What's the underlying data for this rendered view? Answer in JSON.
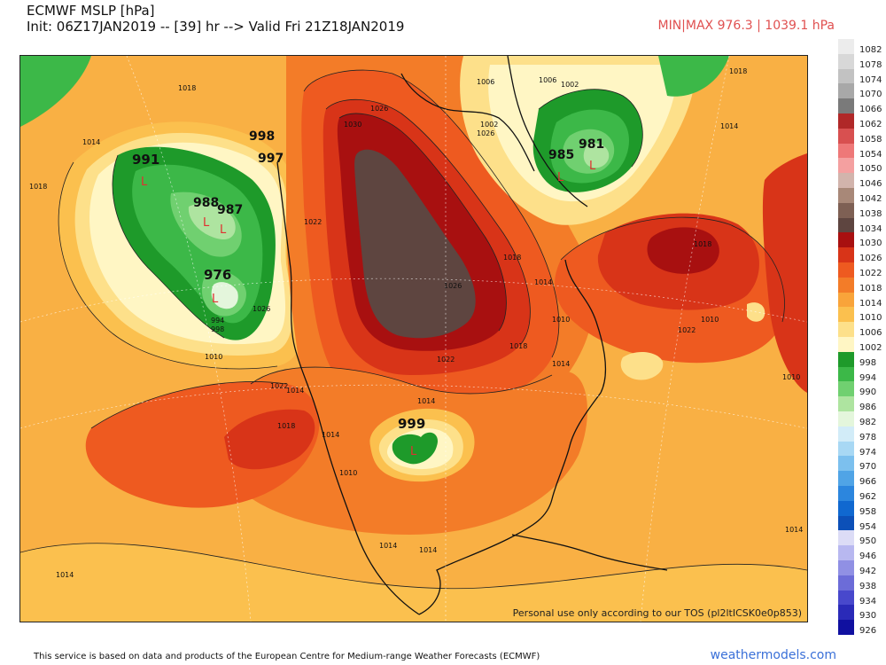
{
  "header": {
    "title_line1": "ECMWF MSLP [hPa]",
    "title_line2": "Init: 06Z17JAN2019 -- [39] hr --> Valid Fri 21Z18JAN2019",
    "minmax": "MIN|MAX 976.3 | 1039.1 hPa"
  },
  "map": {
    "tos_notice": "Personal use only according to our TOS (pl2ltICSK0e0p853)",
    "pressure_centers": [
      {
        "value": "991",
        "type": "low",
        "marker": "L"
      },
      {
        "value": "988",
        "type": "low",
        "marker": "L"
      },
      {
        "value": "987",
        "type": "low",
        "marker": "L"
      },
      {
        "value": "976",
        "type": "low",
        "marker": "L"
      },
      {
        "value": "998",
        "type": "low"
      },
      {
        "value": "997",
        "type": "low"
      },
      {
        "value": "985",
        "type": "low",
        "marker": "L"
      },
      {
        "value": "981",
        "type": "low",
        "marker": "L"
      },
      {
        "value": "999",
        "type": "low",
        "marker": "L"
      }
    ],
    "isobar_labels": [
      "1018",
      "1014",
      "1018",
      "1010",
      "1026",
      "1030",
      "1022",
      "1018",
      "1014",
      "1010",
      "1006",
      "1002",
      "1026",
      "1022",
      "1018",
      "1014",
      "1022",
      "1018",
      "1014",
      "1010",
      "1026",
      "1014",
      "1014",
      "1014",
      "1018",
      "1010",
      "1022",
      "1014",
      "1006",
      "1002",
      "1010",
      "1014",
      "1018",
      "994",
      "998",
      "1026",
      "1014",
      "1014"
    ],
    "colors": {
      "ocean_base": "#f9b044",
      "high_1034": "#5e4540",
      "high_1030": "#a81010",
      "band_1026": "#d83418",
      "band_1022": "#ee5a20",
      "band_1018": "#f37c28",
      "band_1014": "#f9a43a",
      "band_1010": "#fbc04e",
      "band_1006": "#fde08a",
      "band_1002": "#fff6c4",
      "low_998": "#1e9a2a",
      "low_994": "#3cb848",
      "low_990": "#70d070",
      "low_986": "#aee4a0",
      "low_982": "#e4f6dc"
    }
  },
  "legend": {
    "items": [
      {
        "label": "1082",
        "color": "#ececec"
      },
      {
        "label": "1078",
        "color": "#d8d8d8"
      },
      {
        "label": "1074",
        "color": "#c2c2c2"
      },
      {
        "label": "1070",
        "color": "#a8a8a8"
      },
      {
        "label": "1066",
        "color": "#7a7a7a"
      },
      {
        "label": "1062",
        "color": "#b02828"
      },
      {
        "label": "1058",
        "color": "#d85050"
      },
      {
        "label": "1054",
        "color": "#ee7878"
      },
      {
        "label": "1050",
        "color": "#f4a0a0"
      },
      {
        "label": "1046",
        "color": "#d2b4ac"
      },
      {
        "label": "1042",
        "color": "#a88878"
      },
      {
        "label": "1038",
        "color": "#7e6054"
      },
      {
        "label": "1034",
        "color": "#5e4540"
      },
      {
        "label": "1030",
        "color": "#a81010"
      },
      {
        "label": "1026",
        "color": "#d83418"
      },
      {
        "label": "1022",
        "color": "#ee5a20"
      },
      {
        "label": "1018",
        "color": "#f37c28"
      },
      {
        "label": "1014",
        "color": "#f9a43a"
      },
      {
        "label": "1010",
        "color": "#fbc04e"
      },
      {
        "label": "1006",
        "color": "#fde08a"
      },
      {
        "label": "1002",
        "color": "#fff6c4"
      },
      {
        "label": "998",
        "color": "#1e9a2a"
      },
      {
        "label": "994",
        "color": "#3cb848"
      },
      {
        "label": "990",
        "color": "#70d070"
      },
      {
        "label": "986",
        "color": "#aee4a0"
      },
      {
        "label": "982",
        "color": "#e4f6dc"
      },
      {
        "label": "978",
        "color": "#d2ecf8"
      },
      {
        "label": "974",
        "color": "#a8d8f4"
      },
      {
        "label": "970",
        "color": "#7cc0ee"
      },
      {
        "label": "966",
        "color": "#50a4e6"
      },
      {
        "label": "962",
        "color": "#2c86de"
      },
      {
        "label": "958",
        "color": "#1068d0"
      },
      {
        "label": "954",
        "color": "#0c50b8"
      },
      {
        "label": "950",
        "color": "#dcdcf6"
      },
      {
        "label": "946",
        "color": "#b8b8f0"
      },
      {
        "label": "942",
        "color": "#9090e4"
      },
      {
        "label": "938",
        "color": "#6c6cd8"
      },
      {
        "label": "934",
        "color": "#4848cc"
      },
      {
        "label": "930",
        "color": "#2a2ab8"
      },
      {
        "label": "926",
        "color": "#1010a0"
      }
    ]
  },
  "footer": {
    "disclaimer": "This service is based on data and products of the European Centre for Medium-range Weather Forecasts (ECMWF)",
    "brand": "weathermodels.com"
  }
}
